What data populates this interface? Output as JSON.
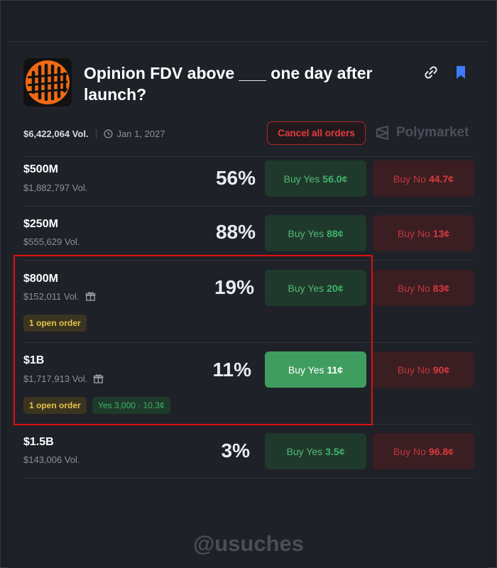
{
  "market": {
    "title": "Opinion FDV above ___ one day after launch?",
    "volume": "$6,422,064 Vol.",
    "date": "Jan 1, 2027",
    "cancel_label": "Cancel all orders",
    "brand": "Polymarket"
  },
  "rows": [
    {
      "name": "$500M",
      "volume": "$1,882,797 Vol.",
      "percent": "56%",
      "yes_label": "Buy Yes",
      "yes_price": "56.0¢",
      "no_label": "Buy No",
      "no_price": "44.7¢"
    },
    {
      "name": "$250M",
      "volume": "$555,629 Vol.",
      "percent": "88%",
      "yes_label": "Buy Yes",
      "yes_price": "88¢",
      "no_label": "Buy No",
      "no_price": "13¢"
    },
    {
      "name": "$800M",
      "volume": "$152,011 Vol.",
      "percent": "19%",
      "yes_label": "Buy Yes",
      "yes_price": "20¢",
      "no_label": "Buy No",
      "no_price": "83¢",
      "order_badge": "1 open order"
    },
    {
      "name": "$1B",
      "volume": "$1,717,913 Vol.",
      "percent": "11%",
      "yes_label": "Buy Yes",
      "yes_price": "11¢",
      "no_label": "Buy No",
      "no_price": "90¢",
      "order_badge": "1 open order",
      "position_badge": "Yes 3,000 · 10.3¢"
    },
    {
      "name": "$1.5B",
      "volume": "$143,006 Vol.",
      "percent": "3%",
      "yes_label": "Buy Yes",
      "yes_price": "3.5¢",
      "no_label": "Buy No",
      "no_price": "96.8¢"
    }
  ],
  "watermark": "@usuches",
  "colors": {
    "background": "#1c1f26",
    "yes": "#3fb36a",
    "no": "#d93a3e",
    "highlight": "#e01010",
    "order_badge": "#e6c34a"
  },
  "icons": [
    "link-icon",
    "bookmark-icon",
    "clock-icon",
    "gift-icon",
    "polymarket-logo-icon"
  ]
}
